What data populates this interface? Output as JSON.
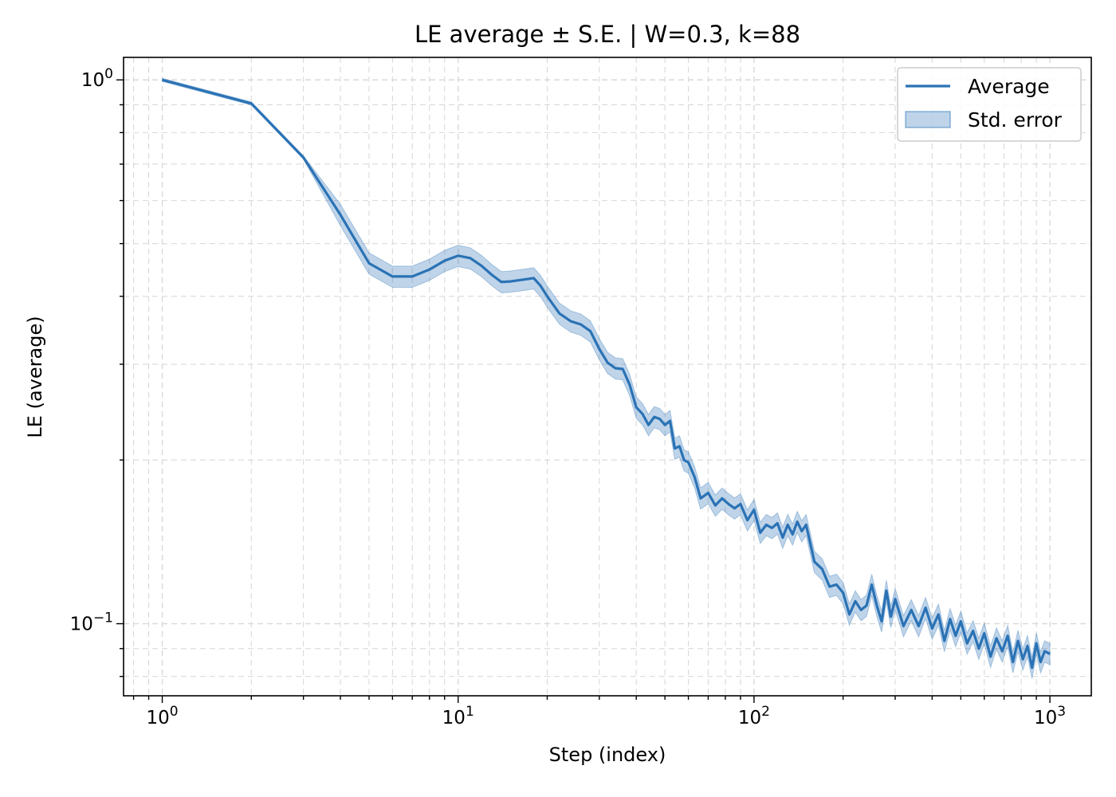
{
  "chart_data": {
    "type": "line",
    "title": "LE average ± S.E. | W=0.3, k=88",
    "xlabel": "Step (index)",
    "ylabel": "LE (average)",
    "x_scale": "log",
    "y_scale": "log",
    "xlim": [
      0.74,
      1380
    ],
    "ylim": [
      0.0737,
      1.1
    ],
    "grid": true,
    "legend_position": "top-right",
    "x_tick_labels": [
      {
        "value": 1,
        "mantissa": "10",
        "exp": "0"
      },
      {
        "value": 10,
        "mantissa": "10",
        "exp": "1"
      },
      {
        "value": 100,
        "mantissa": "10",
        "exp": "2"
      },
      {
        "value": 1000,
        "mantissa": "10",
        "exp": "3"
      }
    ],
    "y_tick_labels": [
      {
        "value": 1,
        "mantissa": "10",
        "exp": "0"
      },
      {
        "value": 0.1,
        "mantissa": "10",
        "exp": "−1"
      }
    ],
    "colors": {
      "line": "#2a72b5",
      "band": "#2a72b5"
    },
    "series": [
      {
        "name": "Average",
        "x": [
          1,
          2,
          3,
          4,
          5,
          6,
          7,
          8,
          9,
          10,
          11,
          12,
          13,
          14,
          15,
          16,
          17,
          18,
          19,
          20,
          22,
          24,
          26,
          28,
          30,
          32,
          34,
          36,
          38,
          40,
          42,
          44,
          46,
          48,
          50,
          52,
          54,
          56,
          58,
          60,
          63,
          66,
          70,
          74,
          78,
          82,
          86,
          90,
          95,
          100,
          105,
          110,
          115,
          120,
          125,
          130,
          135,
          140,
          145,
          150,
          160,
          170,
          180,
          190,
          200,
          210,
          220,
          230,
          240,
          250,
          260,
          270,
          280,
          290,
          300,
          320,
          340,
          360,
          380,
          400,
          420,
          440,
          460,
          480,
          500,
          525,
          550,
          575,
          600,
          630,
          660,
          690,
          720,
          750,
          780,
          810,
          840,
          870,
          900,
          930,
          960,
          1000
        ],
        "values": [
          1.0,
          0.905,
          0.72,
          0.565,
          0.46,
          0.435,
          0.435,
          0.448,
          0.465,
          0.475,
          0.47,
          0.455,
          0.438,
          0.425,
          0.426,
          0.428,
          0.43,
          0.432,
          0.418,
          0.4,
          0.372,
          0.36,
          0.355,
          0.345,
          0.32,
          0.302,
          0.295,
          0.294,
          0.275,
          0.25,
          0.243,
          0.232,
          0.24,
          0.238,
          0.232,
          0.236,
          0.21,
          0.212,
          0.2,
          0.198,
          0.186,
          0.17,
          0.174,
          0.165,
          0.17,
          0.166,
          0.163,
          0.166,
          0.155,
          0.162,
          0.147,
          0.152,
          0.15,
          0.153,
          0.144,
          0.152,
          0.146,
          0.154,
          0.148,
          0.152,
          0.13,
          0.126,
          0.117,
          0.118,
          0.114,
          0.104,
          0.11,
          0.106,
          0.108,
          0.118,
          0.108,
          0.101,
          0.115,
          0.103,
          0.111,
          0.099,
          0.106,
          0.099,
          0.107,
          0.098,
          0.104,
          0.093,
          0.102,
          0.095,
          0.101,
          0.092,
          0.097,
          0.09,
          0.096,
          0.087,
          0.094,
          0.089,
          0.095,
          0.085,
          0.093,
          0.086,
          0.091,
          0.083,
          0.092,
          0.085,
          0.089,
          0.088
        ]
      },
      {
        "name": "Std. error",
        "relative_error": 0.045
      }
    ]
  }
}
